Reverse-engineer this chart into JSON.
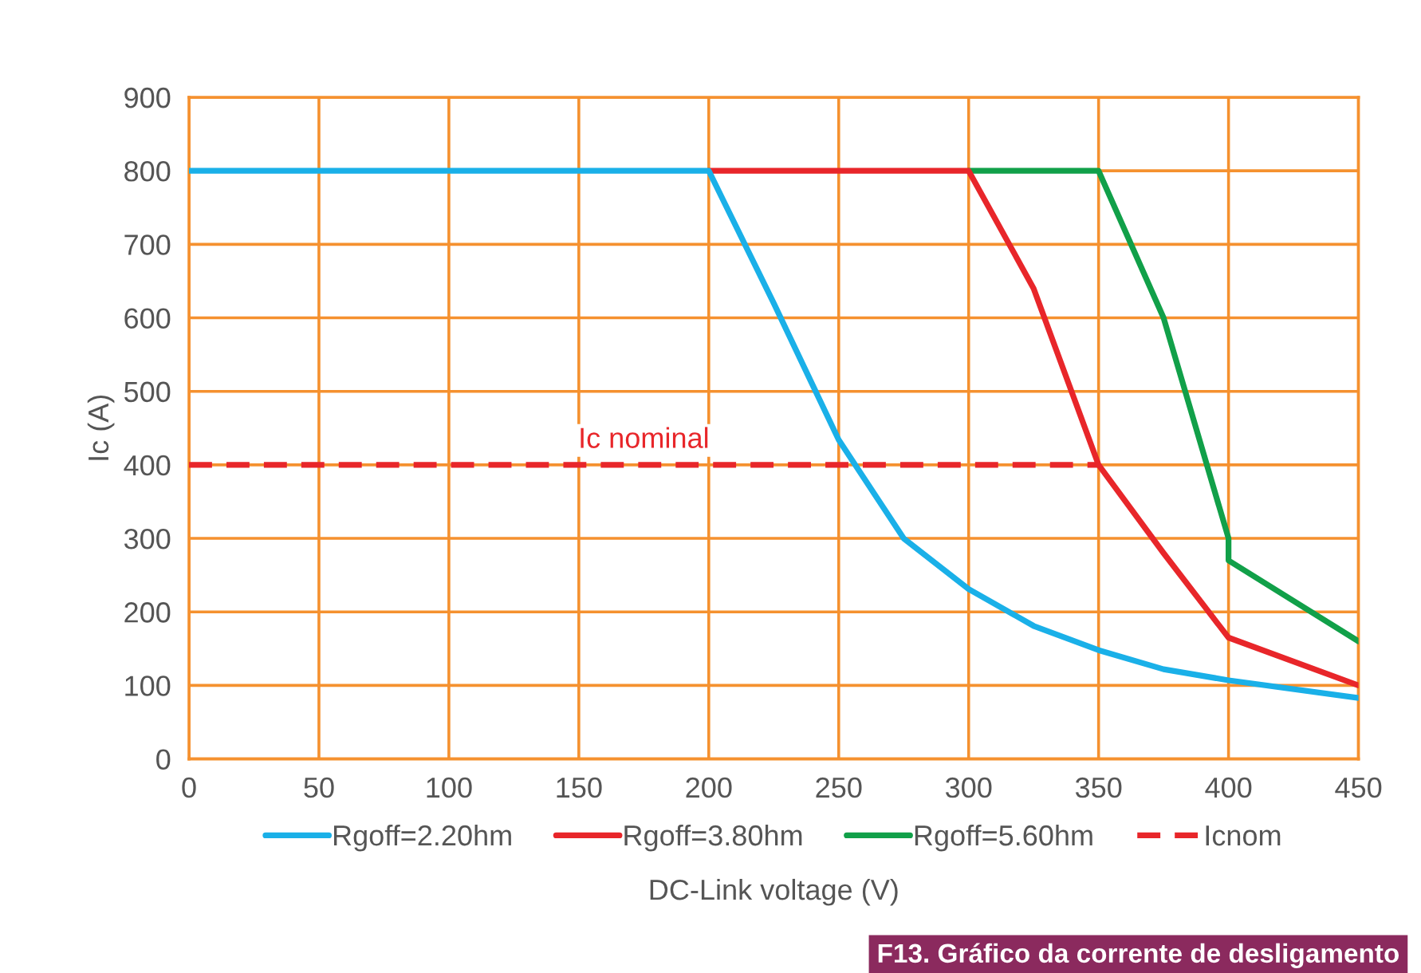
{
  "chart_data": {
    "type": "line",
    "xlabel": "DC-Link voltage (V)",
    "ylabel": "Ic (A)",
    "xlim": [
      0,
      450
    ],
    "ylim": [
      0,
      900
    ],
    "xticks": [
      0,
      50,
      100,
      150,
      200,
      250,
      300,
      350,
      400,
      450
    ],
    "yticks": [
      0,
      100,
      200,
      300,
      400,
      500,
      600,
      700,
      800,
      900
    ],
    "grid": true,
    "legend": "bottom",
    "line_style": "solid",
    "series": [
      {
        "name": "Rgoff=2.20hm",
        "color": "#1ab0e8",
        "x": [
          0,
          200,
          225,
          250,
          275,
          300,
          325,
          350,
          375,
          400,
          450
        ],
        "values": [
          800,
          800,
          620,
          434,
          300,
          231,
          181,
          148,
          122,
          107,
          83
        ]
      },
      {
        "name": "Rgoff=3.80hm",
        "color": "#e8262a",
        "x": [
          200,
          300,
          325,
          350,
          375,
          400,
          450
        ],
        "values": [
          800,
          800,
          640,
          400,
          280,
          165,
          100
        ]
      },
      {
        "name": "Rgoff=5.60hm",
        "color": "#11a049",
        "x": [
          300,
          350,
          375,
          400,
          400,
          450
        ],
        "values": [
          800,
          800,
          600,
          300,
          270,
          160
        ]
      },
      {
        "name": "Icnom",
        "color": "#e8262a",
        "line_style": "dashed",
        "x": [
          0,
          350
        ],
        "values": [
          400,
          400
        ]
      }
    ],
    "annotations": [
      {
        "text": "Ic nominal",
        "x": 175,
        "y": 400
      },
      "F13. Gráfico da corrente de desligamento"
    ]
  }
}
